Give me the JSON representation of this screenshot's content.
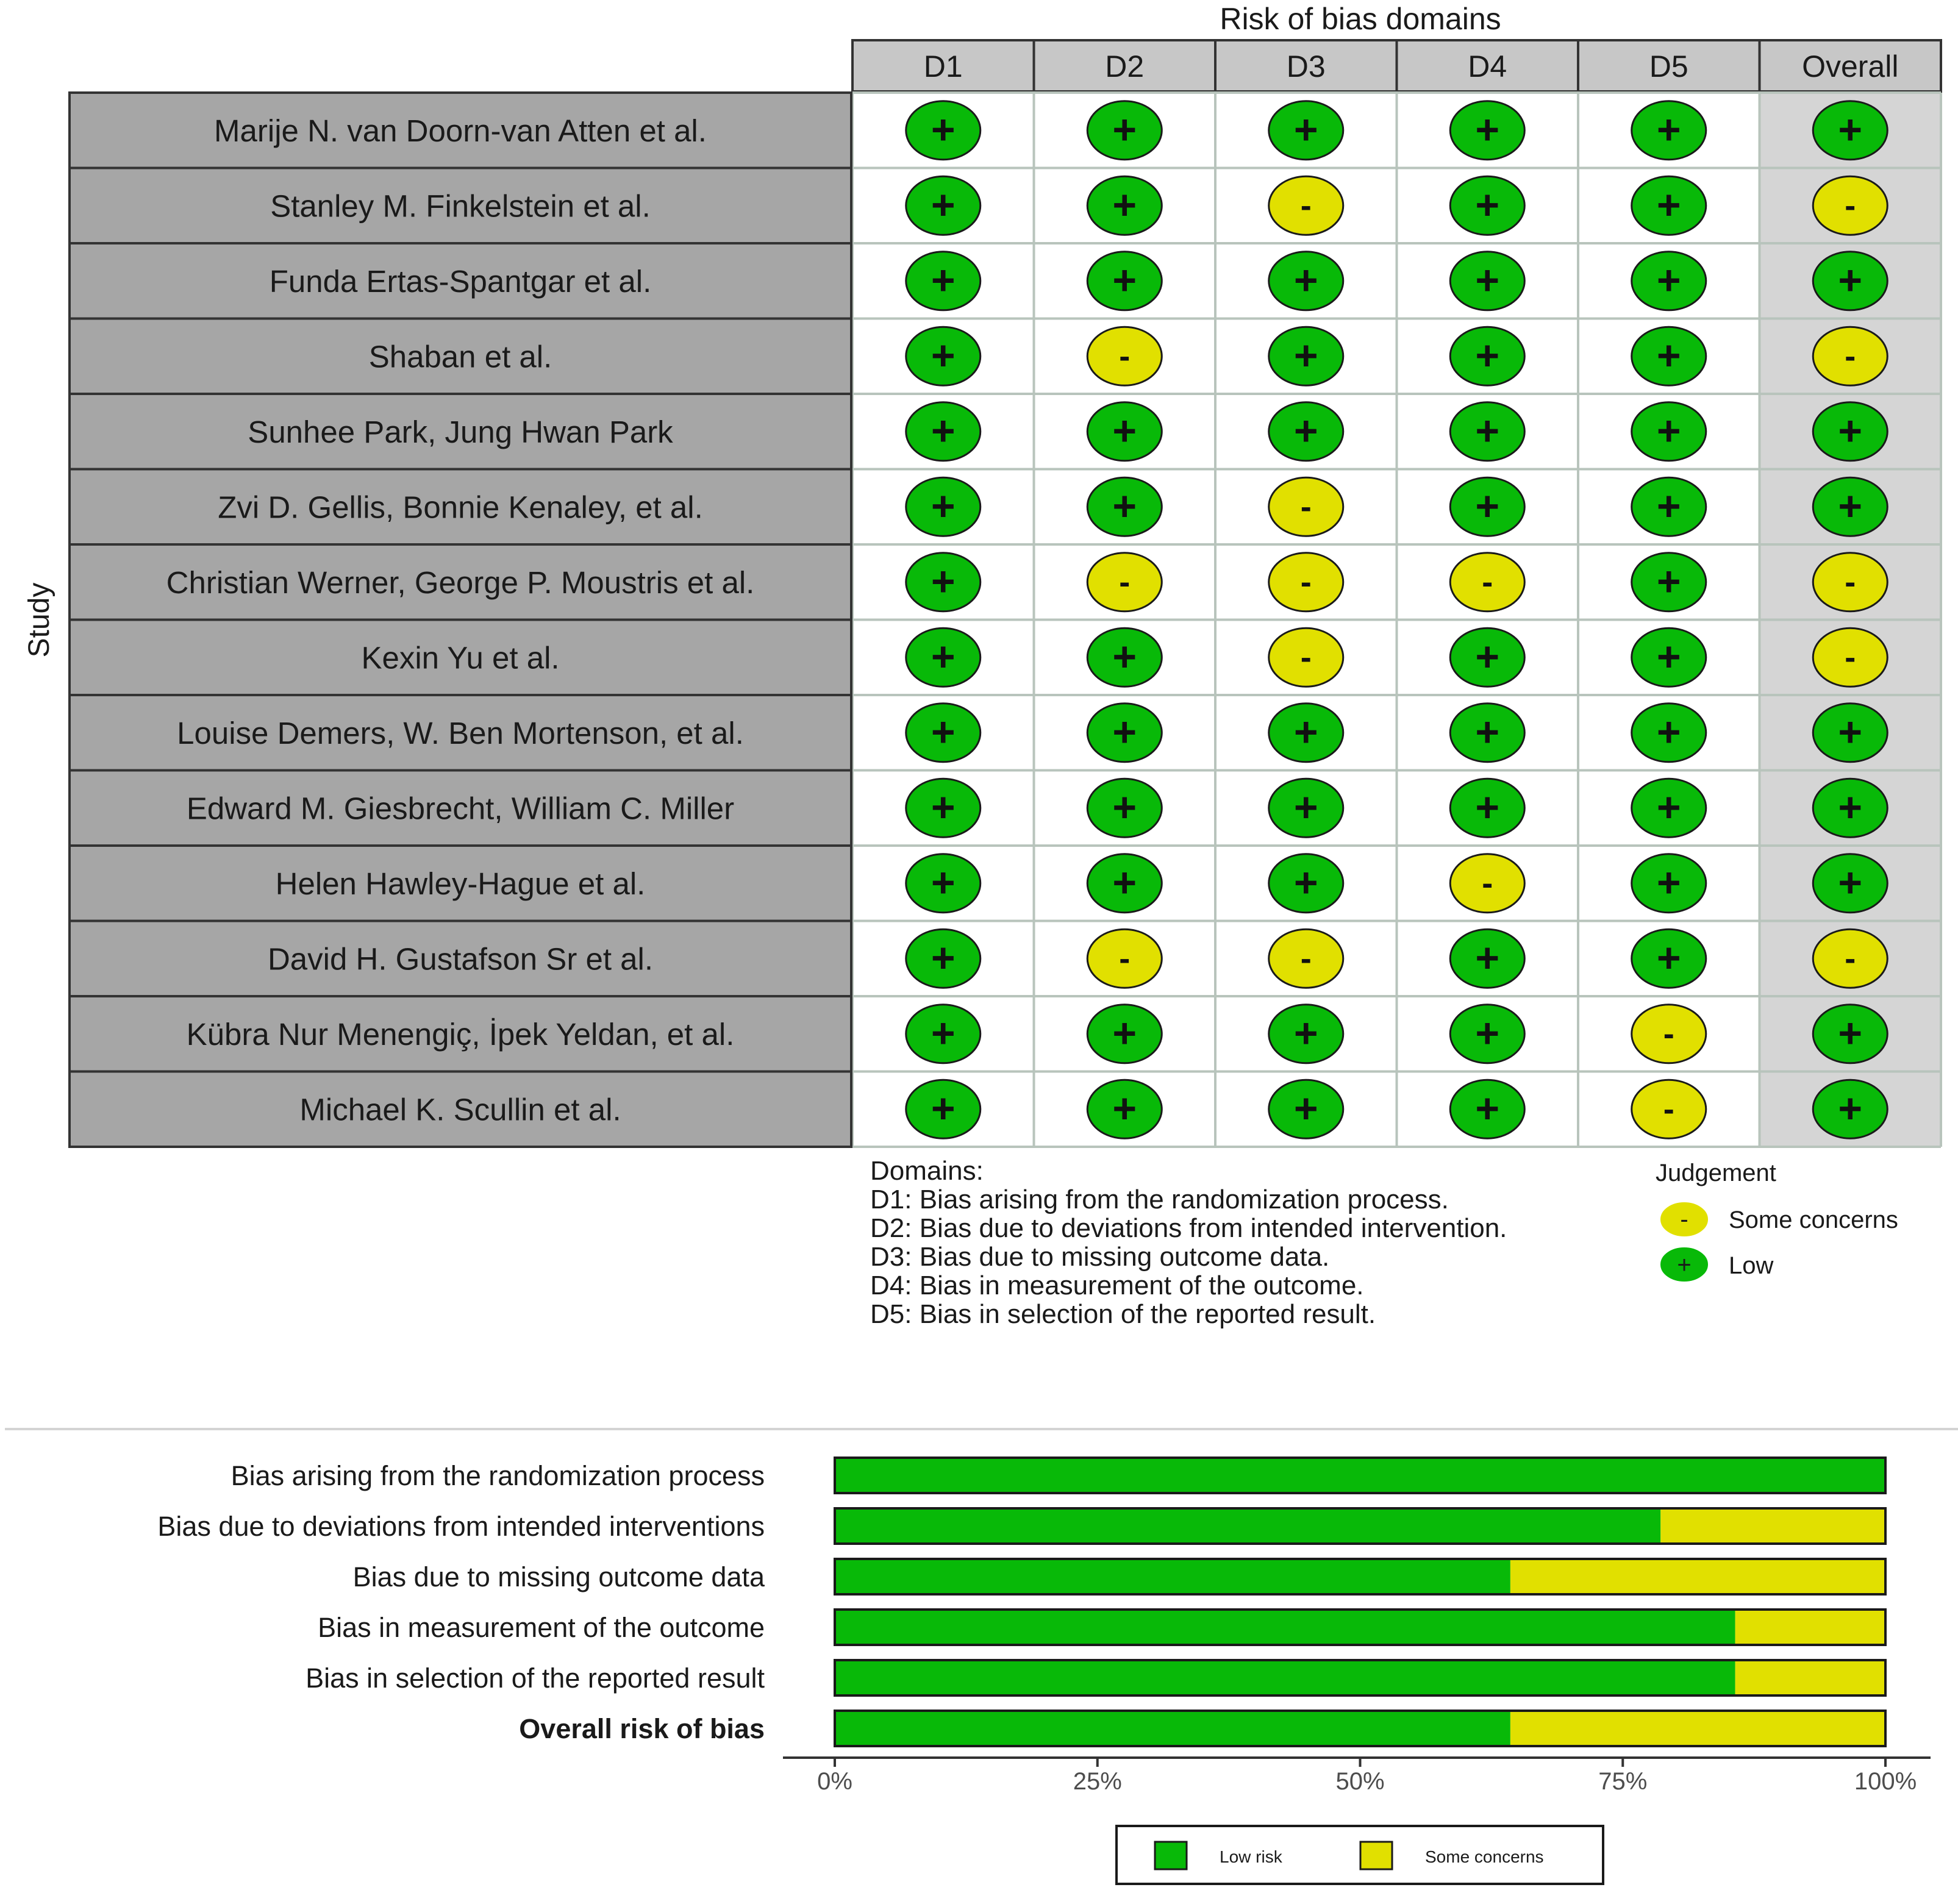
{
  "chart_data": [
    {
      "type": "table",
      "title": "Risk of bias domains",
      "row_axis_label": "Study",
      "columns": [
        "D1",
        "D2",
        "D3",
        "D4",
        "D5",
        "Overall"
      ],
      "rows": [
        {
          "study": "Marije N. van Doorn-van Atten et al.",
          "judgements": [
            "+",
            "+",
            "+",
            "+",
            "+",
            "+"
          ]
        },
        {
          "study": "Stanley M. Finkelstein et al.",
          "judgements": [
            "+",
            "+",
            "-",
            "+",
            "+",
            "-"
          ]
        },
        {
          "study": "Funda Ertas-Spantgar et al.",
          "judgements": [
            "+",
            "+",
            "+",
            "+",
            "+",
            "+"
          ]
        },
        {
          "study": "Shaban et al.",
          "judgements": [
            "+",
            "-",
            "+",
            "+",
            "+",
            "-"
          ]
        },
        {
          "study": "Sunhee Park, Jung Hwan Park",
          "judgements": [
            "+",
            "+",
            "+",
            "+",
            "+",
            "+"
          ]
        },
        {
          "study": "Zvi D. Gellis, Bonnie Kenaley, et al.",
          "judgements": [
            "+",
            "+",
            "-",
            "+",
            "+",
            "+"
          ]
        },
        {
          "study": "Christian Werner, George P. Moustris et al.",
          "judgements": [
            "+",
            "-",
            "-",
            "-",
            "+",
            "-"
          ]
        },
        {
          "study": "Kexin Yu et al.",
          "judgements": [
            "+",
            "+",
            "-",
            "+",
            "+",
            "-"
          ]
        },
        {
          "study": "Louise Demers, W. Ben Mortenson, et al.",
          "judgements": [
            "+",
            "+",
            "+",
            "+",
            "+",
            "+"
          ]
        },
        {
          "study": "Edward M. Giesbrecht, William C. Miller",
          "judgements": [
            "+",
            "+",
            "+",
            "+",
            "+",
            "+"
          ]
        },
        {
          "study": "Helen Hawley-Hague et al.",
          "judgements": [
            "+",
            "+",
            "+",
            "-",
            "+",
            "+"
          ]
        },
        {
          "study": "David H. Gustafson Sr et al.",
          "judgements": [
            "+",
            "-",
            "-",
            "+",
            "+",
            "-"
          ]
        },
        {
          "study": "Kübra Nur Menengiç, İpek Yeldan, et al.",
          "judgements": [
            "+",
            "+",
            "+",
            "+",
            "-",
            "+"
          ]
        },
        {
          "study": "Michael K. Scullin et al.",
          "judgements": [
            "+",
            "+",
            "+",
            "+",
            "-",
            "+"
          ]
        }
      ],
      "domains_legend": {
        "title": "Domains:",
        "items": [
          "D1: Bias arising from the randomization process.",
          "D2: Bias due to deviations from intended intervention.",
          "D3: Bias due to missing outcome data.",
          "D4: Bias in measurement of the outcome.",
          "D5: Bias in selection of the reported result."
        ]
      },
      "judgement_legend": {
        "title": "Judgement",
        "items": [
          {
            "symbol": "-",
            "label": "Some concerns",
            "color": "#e1e000"
          },
          {
            "symbol": "+",
            "label": "Low",
            "color": "#08b908"
          }
        ]
      }
    },
    {
      "type": "bar",
      "orientation": "horizontal",
      "stacked": true,
      "categories": [
        "Bias arising from the randomization process",
        "Bias due to deviations from intended interventions",
        "Bias due to missing outcome data",
        "Bias in measurement of the outcome",
        "Bias in selection of the reported result",
        "Overall risk of bias"
      ],
      "bold_categories": [
        "Overall risk of bias"
      ],
      "series": [
        {
          "name": "Low risk",
          "color": "#08b908",
          "values": [
            100,
            78.6,
            64.3,
            85.7,
            85.7,
            64.3
          ]
        },
        {
          "name": "Some concerns",
          "color": "#e1e000",
          "values": [
            0,
            21.4,
            35.7,
            14.3,
            14.3,
            35.7
          ]
        }
      ],
      "xlim": [
        0,
        100
      ],
      "x_ticks": [
        "0%",
        "25%",
        "50%",
        "75%",
        "100%"
      ],
      "legend_position": "bottom-center"
    }
  ],
  "colors": {
    "low": "#08b908",
    "some_concerns": "#e1e000",
    "header_fill": "#c7c7c7",
    "study_fill": "#a6a6a6",
    "overall_fill": "#d5d5d5",
    "cell_fill": "#ffffff",
    "cell_border": "#b8c4bc"
  }
}
